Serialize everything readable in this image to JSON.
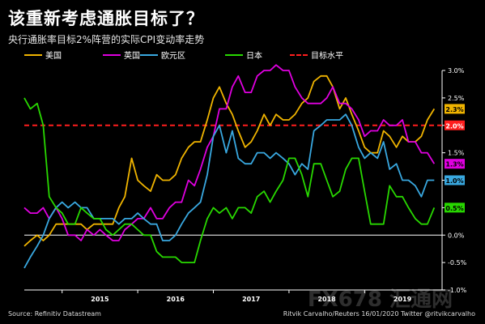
{
  "title": "该重新考虑通胀目标了？",
  "subtitle": "央行通胀率目标2%阵营的实际CPI变动率走势",
  "source": "Source: Refinitiv Datastream",
  "credit": "Ritvik Carvalho/Reuters 16/01/2020 Twitter @ritvikcarvalho",
  "watermark": "FX678 汇通网",
  "colors": {
    "background": "#000000",
    "us": "#f0b400",
    "uk": "#e000e0",
    "eu": "#39a8e0",
    "jp": "#28d800",
    "target": "#ff1e1e",
    "axis": "#ffffff"
  },
  "chart_data": {
    "type": "line",
    "title": "该重新考虑通胀目标了？",
    "subtitle": "央行通胀率目标2%阵营的实际CPI变动率走势",
    "xlabel": "",
    "ylabel": "",
    "ylim": [
      -1.0,
      3.0
    ],
    "y_ticks": [
      "3.0%",
      "2.5%",
      "2.0%",
      "1.5%",
      "1.0%",
      "0.5%",
      "0.0%",
      "-0.5%",
      "-1.0%"
    ],
    "y_tick_values": [
      3.0,
      2.5,
      2.0,
      1.5,
      1.0,
      0.5,
      0.0,
      -0.5,
      -1.0
    ],
    "x_ticks": [
      "2015",
      "2016",
      "2017",
      "2018",
      "2019"
    ],
    "x_tick_positions": [
      2015.0,
      2016.0,
      2017.0,
      2018.0,
      2019.0
    ],
    "xlim": [
      2014.5,
      2019.96
    ],
    "grid": false,
    "legend_position": "top",
    "series": [
      {
        "name": "美国",
        "color_key": "us",
        "end_label": "2.3%",
        "x": [
          2014.5,
          2014.58,
          2014.67,
          2014.75,
          2014.83,
          2014.92,
          2015.0,
          2015.08,
          2015.17,
          2015.25,
          2015.33,
          2015.42,
          2015.5,
          2015.58,
          2015.67,
          2015.75,
          2015.83,
          2015.92,
          2016.0,
          2016.08,
          2016.17,
          2016.25,
          2016.33,
          2016.42,
          2016.5,
          2016.58,
          2016.67,
          2016.75,
          2016.83,
          2016.92,
          2017.0,
          2017.08,
          2017.17,
          2017.25,
          2017.33,
          2017.42,
          2017.5,
          2017.58,
          2017.67,
          2017.75,
          2017.83,
          2017.92,
          2018.0,
          2018.08,
          2018.17,
          2018.25,
          2018.33,
          2018.42,
          2018.5,
          2018.58,
          2018.67,
          2018.75,
          2018.83,
          2018.92,
          2019.0,
          2019.08,
          2019.17,
          2019.25,
          2019.33,
          2019.42,
          2019.5,
          2019.58,
          2019.67,
          2019.75,
          2019.83,
          2019.92
        ],
        "y": [
          -0.2,
          -0.1,
          0.0,
          -0.1,
          0.0,
          0.2,
          0.2,
          0.2,
          0.2,
          0.2,
          0.1,
          0.2,
          0.2,
          0.2,
          0.2,
          0.5,
          0.7,
          1.4,
          1.0,
          0.9,
          0.8,
          1.1,
          1.0,
          1.0,
          1.1,
          1.4,
          1.6,
          1.7,
          1.7,
          2.1,
          2.5,
          2.7,
          2.4,
          2.2,
          1.9,
          1.6,
          1.7,
          1.9,
          2.2,
          2.0,
          2.2,
          2.1,
          2.1,
          2.2,
          2.4,
          2.5,
          2.8,
          2.9,
          2.9,
          2.7,
          2.3,
          2.5,
          2.2,
          1.9,
          1.6,
          1.5,
          1.5,
          1.9,
          1.8,
          1.6,
          1.8,
          1.7,
          1.7,
          1.8,
          2.1,
          2.3
        ]
      },
      {
        "name": "英国",
        "color_key": "uk",
        "end_label": "1.3%",
        "x": [
          2014.5,
          2014.58,
          2014.67,
          2014.75,
          2014.83,
          2014.92,
          2015.0,
          2015.08,
          2015.17,
          2015.25,
          2015.33,
          2015.42,
          2015.5,
          2015.58,
          2015.67,
          2015.75,
          2015.83,
          2015.92,
          2016.0,
          2016.08,
          2016.17,
          2016.25,
          2016.33,
          2016.42,
          2016.5,
          2016.58,
          2016.67,
          2016.75,
          2016.83,
          2016.92,
          2017.0,
          2017.08,
          2017.17,
          2017.25,
          2017.33,
          2017.42,
          2017.5,
          2017.58,
          2017.67,
          2017.75,
          2017.83,
          2017.92,
          2018.0,
          2018.08,
          2018.17,
          2018.25,
          2018.33,
          2018.42,
          2018.5,
          2018.58,
          2018.67,
          2018.75,
          2018.83,
          2018.92,
          2019.0,
          2019.08,
          2019.17,
          2019.25,
          2019.33,
          2019.42,
          2019.5,
          2019.58,
          2019.67,
          2019.75,
          2019.83,
          2019.92
        ],
        "y": [
          0.5,
          0.4,
          0.4,
          0.5,
          0.3,
          0.5,
          0.3,
          0.0,
          0.0,
          -0.1,
          0.1,
          0.0,
          0.1,
          0.0,
          -0.1,
          -0.1,
          0.1,
          0.2,
          0.3,
          0.3,
          0.5,
          0.3,
          0.3,
          0.5,
          0.6,
          0.6,
          1.0,
          0.9,
          1.2,
          1.6,
          1.8,
          2.3,
          2.3,
          2.7,
          2.9,
          2.6,
          2.6,
          2.9,
          3.0,
          3.0,
          3.1,
          3.0,
          3.0,
          2.7,
          2.5,
          2.4,
          2.4,
          2.4,
          2.5,
          2.7,
          2.4,
          2.4,
          2.3,
          2.1,
          1.8,
          1.9,
          1.9,
          2.1,
          2.0,
          2.0,
          2.1,
          1.7,
          1.7,
          1.5,
          1.5,
          1.3
        ]
      },
      {
        "name": "欧元区",
        "color_key": "eu",
        "end_label": "1.0%",
        "x": [
          2014.5,
          2014.58,
          2014.67,
          2014.75,
          2014.83,
          2014.92,
          2015.0,
          2015.08,
          2015.17,
          2015.25,
          2015.33,
          2015.42,
          2015.5,
          2015.58,
          2015.67,
          2015.75,
          2015.83,
          2015.92,
          2016.0,
          2016.08,
          2016.17,
          2016.25,
          2016.33,
          2016.42,
          2016.5,
          2016.58,
          2016.67,
          2016.75,
          2016.83,
          2016.92,
          2017.0,
          2017.08,
          2017.17,
          2017.25,
          2017.33,
          2017.42,
          2017.5,
          2017.58,
          2017.67,
          2017.75,
          2017.83,
          2017.92,
          2018.0,
          2018.08,
          2018.17,
          2018.25,
          2018.33,
          2018.42,
          2018.5,
          2018.58,
          2018.67,
          2018.75,
          2018.83,
          2018.92,
          2019.0,
          2019.08,
          2019.17,
          2019.25,
          2019.33,
          2019.42,
          2019.5,
          2019.58,
          2019.67,
          2019.75,
          2019.83,
          2019.92
        ],
        "y": [
          -0.6,
          -0.4,
          -0.2,
          0.0,
          0.3,
          0.5,
          0.6,
          0.5,
          0.6,
          0.5,
          0.5,
          0.3,
          0.3,
          0.3,
          0.3,
          0.2,
          0.3,
          0.3,
          0.4,
          0.3,
          0.2,
          0.2,
          -0.1,
          -0.1,
          0.0,
          0.2,
          0.4,
          0.5,
          0.6,
          1.1,
          1.8,
          2.0,
          1.5,
          1.9,
          1.4,
          1.3,
          1.3,
          1.5,
          1.5,
          1.4,
          1.5,
          1.4,
          1.3,
          1.1,
          1.3,
          1.2,
          1.9,
          2.0,
          2.1,
          2.1,
          2.1,
          2.2,
          2.0,
          1.6,
          1.4,
          1.5,
          1.4,
          1.7,
          1.2,
          1.3,
          1.0,
          1.0,
          0.9,
          0.7,
          1.0,
          1.0
        ]
      },
      {
        "name": "日本",
        "color_key": "jp",
        "end_label": "0.5%",
        "x": [
          2014.5,
          2014.58,
          2014.67,
          2014.75,
          2014.83,
          2014.92,
          2015.0,
          2015.08,
          2015.17,
          2015.25,
          2015.33,
          2015.42,
          2015.5,
          2015.58,
          2015.67,
          2015.75,
          2015.83,
          2015.92,
          2016.0,
          2016.08,
          2016.17,
          2016.25,
          2016.33,
          2016.42,
          2016.5,
          2016.58,
          2016.67,
          2016.75,
          2016.83,
          2016.92,
          2017.0,
          2017.08,
          2017.17,
          2017.25,
          2017.33,
          2017.42,
          2017.5,
          2017.58,
          2017.67,
          2017.75,
          2017.83,
          2017.92,
          2018.0,
          2018.08,
          2018.17,
          2018.25,
          2018.33,
          2018.42,
          2018.5,
          2018.58,
          2018.67,
          2018.75,
          2018.83,
          2018.92,
          2019.0,
          2019.08,
          2019.17,
          2019.25,
          2019.33,
          2019.42,
          2019.5,
          2019.58,
          2019.67,
          2019.75,
          2019.83,
          2019.92
        ],
        "y": [
          2.5,
          2.3,
          2.4,
          2.0,
          0.7,
          0.5,
          0.4,
          0.2,
          0.2,
          0.5,
          0.4,
          0.3,
          0.3,
          0.1,
          0.0,
          0.1,
          0.2,
          0.2,
          0.1,
          0.0,
          0.0,
          -0.3,
          -0.4,
          -0.4,
          -0.4,
          -0.5,
          -0.5,
          -0.5,
          -0.1,
          0.3,
          0.5,
          0.4,
          0.5,
          0.3,
          0.5,
          0.5,
          0.4,
          0.7,
          0.8,
          0.6,
          0.8,
          1.0,
          1.4,
          1.4,
          1.1,
          0.7,
          1.3,
          1.3,
          1.0,
          0.7,
          0.8,
          1.2,
          1.4,
          1.4,
          0.8,
          0.2,
          0.2,
          0.2,
          0.9,
          0.7,
          0.7,
          0.5,
          0.3,
          0.2,
          0.2,
          0.5
        ]
      }
    ],
    "reference_lines": [
      {
        "name": "目标水平",
        "color_key": "target",
        "value": 2.0,
        "end_label": "2.0%",
        "style": "dashed"
      }
    ]
  }
}
